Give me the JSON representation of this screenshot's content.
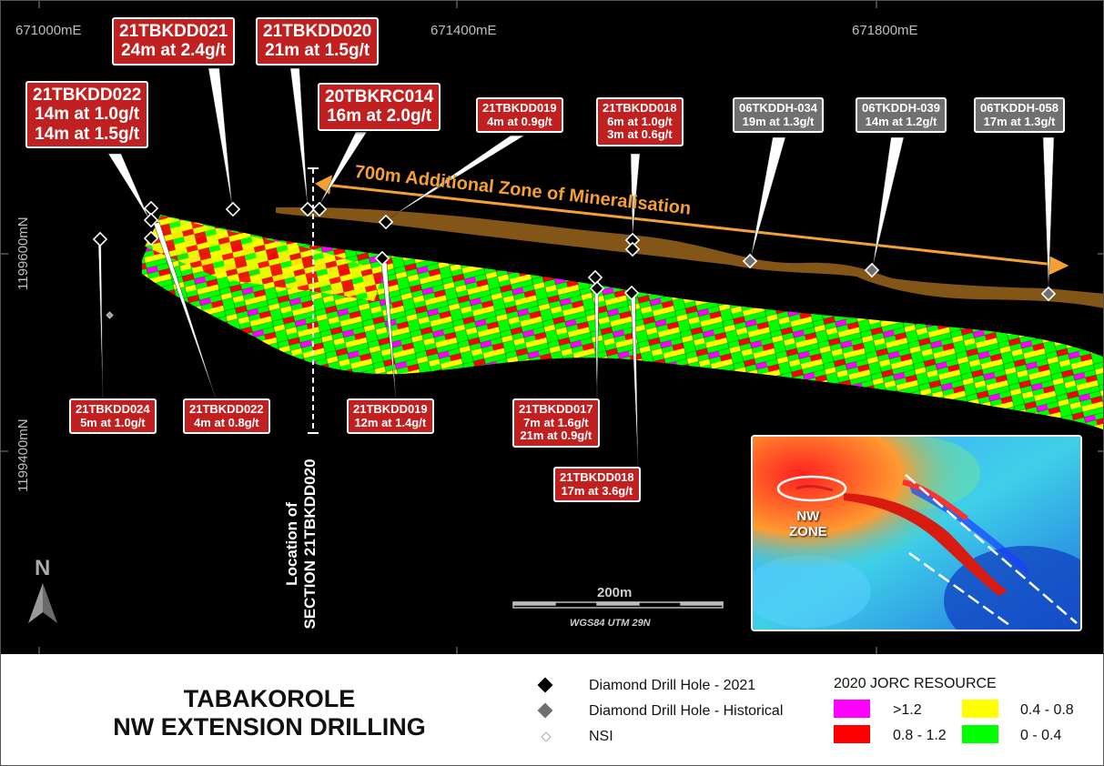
{
  "map": {
    "eastings": [
      "671000mE",
      "671400mE",
      "671800mE"
    ],
    "northings": [
      "1199600mN",
      "1199400mN"
    ],
    "zone_label": "700m Additional Zone of Mineralisation",
    "section_label_line1": "Location of",
    "section_label_line2": "SECTION 21TBKDD020",
    "north_label": "N",
    "scale_label": "200m",
    "projection": "WGS84 UTM 29N",
    "colors": {
      "pink": "#ff00ff",
      "red": "#ff0000",
      "yellow": "#ffff00",
      "green": "#00ff00",
      "zone_brown": "#8a5a18",
      "arrow_orange": "#f5a033",
      "callout_red": "#c0201f",
      "callout_grey": "#707070"
    }
  },
  "callouts": {
    "c021": {
      "name": "21TBKDD021",
      "lines": [
        "24m at 2.4g/t"
      ]
    },
    "c020": {
      "name": "21TBKDD020",
      "lines": [
        "21m at 1.5g/t"
      ]
    },
    "c022a": {
      "name": "21TBKDD022",
      "lines": [
        "14m at 1.0g/t",
        "14m at 1.5g/t"
      ]
    },
    "rc014": {
      "name": "20TBKRC014",
      "lines": [
        "16m at 2.0g/t"
      ]
    },
    "c019a": {
      "name": "21TBKDD019",
      "lines": [
        "4m at 0.9g/t"
      ]
    },
    "c018a": {
      "name": "21TBKDD018",
      "lines": [
        "6m at 1.0g/t",
        "3m at 0.6g/t"
      ]
    },
    "h034": {
      "name": "06TKDDH-034",
      "lines": [
        "19m at 1.3g/t"
      ]
    },
    "h039": {
      "name": "06TKDDH-039",
      "lines": [
        "14m at 1.2g/t"
      ]
    },
    "h058": {
      "name": "06TKDDH-058",
      "lines": [
        "17m at 1.3g/t"
      ]
    },
    "c024": {
      "name": "21TBKDD024",
      "lines": [
        "5m at 1.0g/t"
      ]
    },
    "c022b": {
      "name": "21TBKDD022",
      "lines": [
        "4m at 0.8g/t"
      ]
    },
    "c019b": {
      "name": "21TBKDD019",
      "lines": [
        "12m at 1.4g/t"
      ]
    },
    "c017": {
      "name": "21TBKDD017",
      "lines": [
        "7m at 1.6g/t",
        "21m at 0.9g/t"
      ]
    },
    "c018b": {
      "name": "21TBKDD018",
      "lines": [
        "17m at 3.6g/t"
      ]
    }
  },
  "inset": {
    "label_line1": "NW",
    "label_line2": "ZONE"
  },
  "legend": {
    "title_line1": "TABAKOROLE",
    "title_line2": "NW EXTENSION DRILLING",
    "symbols": [
      {
        "label": "Diamond Drill Hole - 2021",
        "color": "#000000"
      },
      {
        "label": "Diamond Drill Hole - Historical",
        "color": "#707070"
      },
      {
        "label": "NSI",
        "color": "#bbbbbb"
      }
    ],
    "resource_title": "2020 JORC RESOURCE",
    "classes": [
      {
        "label": ">1.2",
        "color": "#ff00ff"
      },
      {
        "label": "0.4 - 0.8",
        "color": "#ffff00"
      },
      {
        "label": "0.8 - 1.2",
        "color": "#ff0000"
      },
      {
        "label": "0 - 0.4",
        "color": "#00ff00"
      }
    ]
  }
}
